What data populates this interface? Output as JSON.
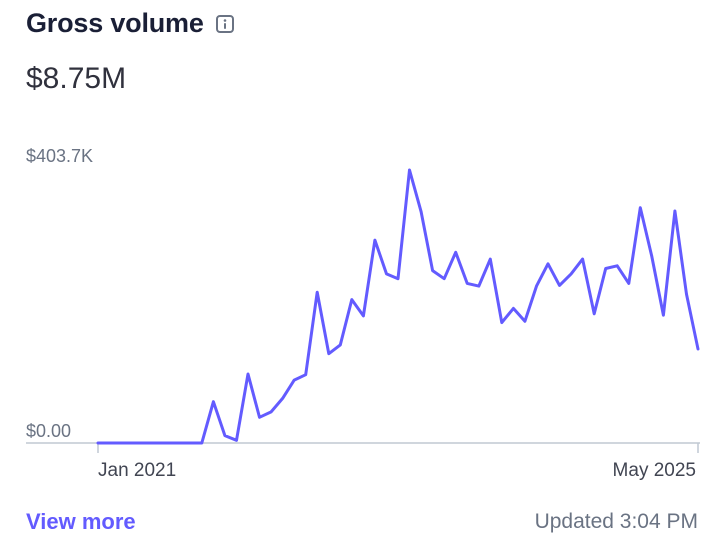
{
  "header": {
    "title": "Gross volume",
    "info_icon": "info-icon"
  },
  "summary": {
    "total": "$8.75M"
  },
  "footer": {
    "view_more_label": "View more",
    "updated_text": "Updated 3:04 PM"
  },
  "colors": {
    "line": "#635bff",
    "axis": "#c0c8d2",
    "link": "#635bff"
  },
  "chart_data": {
    "type": "line",
    "title": "",
    "xlabel": "",
    "ylabel": "",
    "ylim": [
      0,
      403700
    ],
    "y_tick_labels": [
      "$403.7K",
      "$0.00"
    ],
    "x_tick_labels": [
      "Jan 2021",
      "May 2025"
    ],
    "x_range": [
      "Jan 2021",
      "May 2025"
    ],
    "grid": false,
    "series": [
      {
        "values": [
          0,
          0,
          0,
          0,
          0,
          0,
          0,
          0,
          0,
          0,
          61000,
          11000,
          4000,
          102000,
          38000,
          46000,
          66000,
          93000,
          101000,
          223000,
          132000,
          145000,
          212000,
          188000,
          300000,
          250000,
          243000,
          403700,
          342000,
          255000,
          243000,
          282000,
          236000,
          232000,
          272000,
          178000,
          199000,
          180000,
          232000,
          265000,
          233000,
          250000,
          272000,
          191000,
          258000,
          262000,
          236000,
          348000,
          276000,
          189000,
          343000,
          220000,
          139000
        ]
      }
    ]
  }
}
